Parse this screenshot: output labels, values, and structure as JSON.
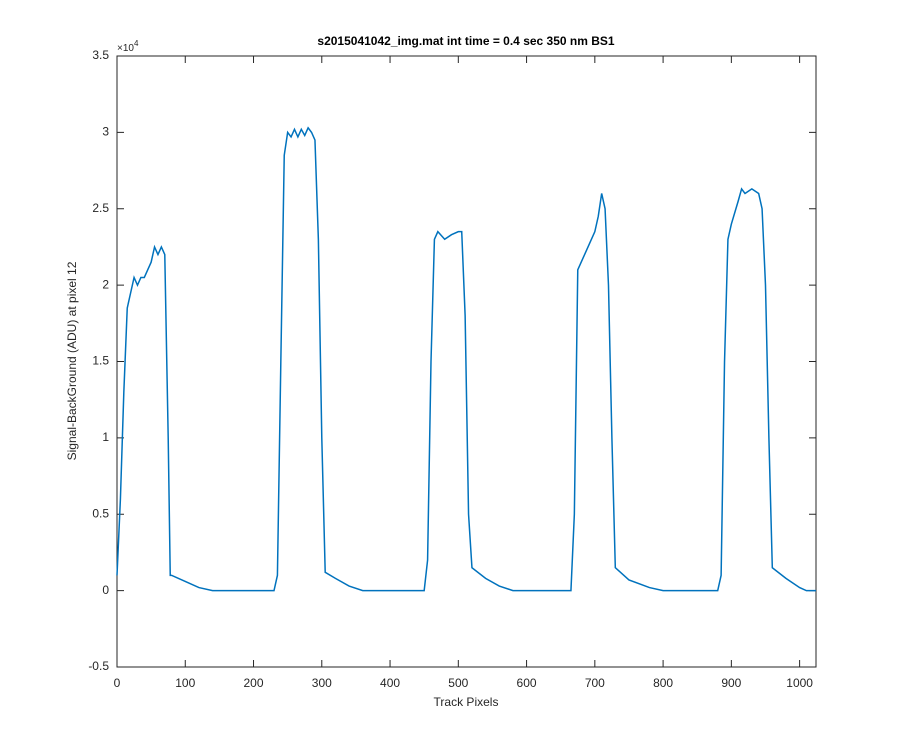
{
  "chart_data": {
    "type": "line",
    "title": "s2015041042_img.mat int time = 0.4 sec  350 nm BS1",
    "x_label": "Track Pixels",
    "y_label": "Signal-BackGround (ADU) at pixel 12",
    "y_multiplier": {
      "base": "×10",
      "exponent": "4"
    },
    "xlim": [
      0,
      1024
    ],
    "ylim": [
      -0.5,
      3.5
    ],
    "xticks": [
      0,
      100,
      200,
      300,
      400,
      500,
      600,
      700,
      800,
      900,
      1000
    ],
    "yticks": [
      -0.5,
      0,
      0.5,
      1,
      1.5,
      2,
      2.5,
      3,
      3.5
    ],
    "series": [
      {
        "color": "#0072bd",
        "x": [
          0,
          5,
          10,
          15,
          20,
          25,
          30,
          35,
          40,
          45,
          50,
          55,
          60,
          65,
          70,
          75,
          78,
          80,
          100,
          120,
          140,
          160,
          200,
          230,
          235,
          240,
          245,
          250,
          255,
          260,
          265,
          270,
          275,
          280,
          285,
          290,
          295,
          300,
          305,
          320,
          340,
          360,
          400,
          450,
          455,
          460,
          465,
          470,
          480,
          490,
          500,
          505,
          510,
          515,
          520,
          540,
          560,
          580,
          620,
          665,
          670,
          675,
          680,
          690,
          700,
          705,
          710,
          715,
          720,
          725,
          730,
          750,
          780,
          800,
          880,
          885,
          890,
          895,
          900,
          910,
          915,
          920,
          930,
          940,
          945,
          950,
          955,
          960,
          980,
          1000,
          1010,
          1024
        ],
        "values": [
          0.1,
          0.6,
          1.3,
          1.85,
          1.95,
          2.05,
          2.0,
          2.05,
          2.05,
          2.1,
          2.15,
          2.25,
          2.2,
          2.25,
          2.2,
          1.0,
          0.1,
          0.1,
          0.06,
          0.02,
          0,
          0,
          0,
          0,
          0.1,
          1.5,
          2.85,
          3.0,
          2.97,
          3.02,
          2.97,
          3.02,
          2.98,
          3.03,
          3.0,
          2.95,
          2.3,
          1.0,
          0.12,
          0.08,
          0.03,
          0,
          0,
          0,
          0.2,
          1.5,
          2.3,
          2.35,
          2.3,
          2.33,
          2.35,
          2.35,
          1.8,
          0.5,
          0.15,
          0.08,
          0.03,
          0,
          0,
          0,
          0.5,
          2.1,
          2.15,
          2.25,
          2.35,
          2.45,
          2.6,
          2.5,
          2.0,
          1.0,
          0.15,
          0.07,
          0.02,
          0,
          0,
          0.1,
          1.5,
          2.3,
          2.4,
          2.55,
          2.63,
          2.6,
          2.63,
          2.6,
          2.5,
          2.0,
          1.0,
          0.15,
          0.08,
          0.02,
          0,
          0
        ]
      }
    ]
  }
}
